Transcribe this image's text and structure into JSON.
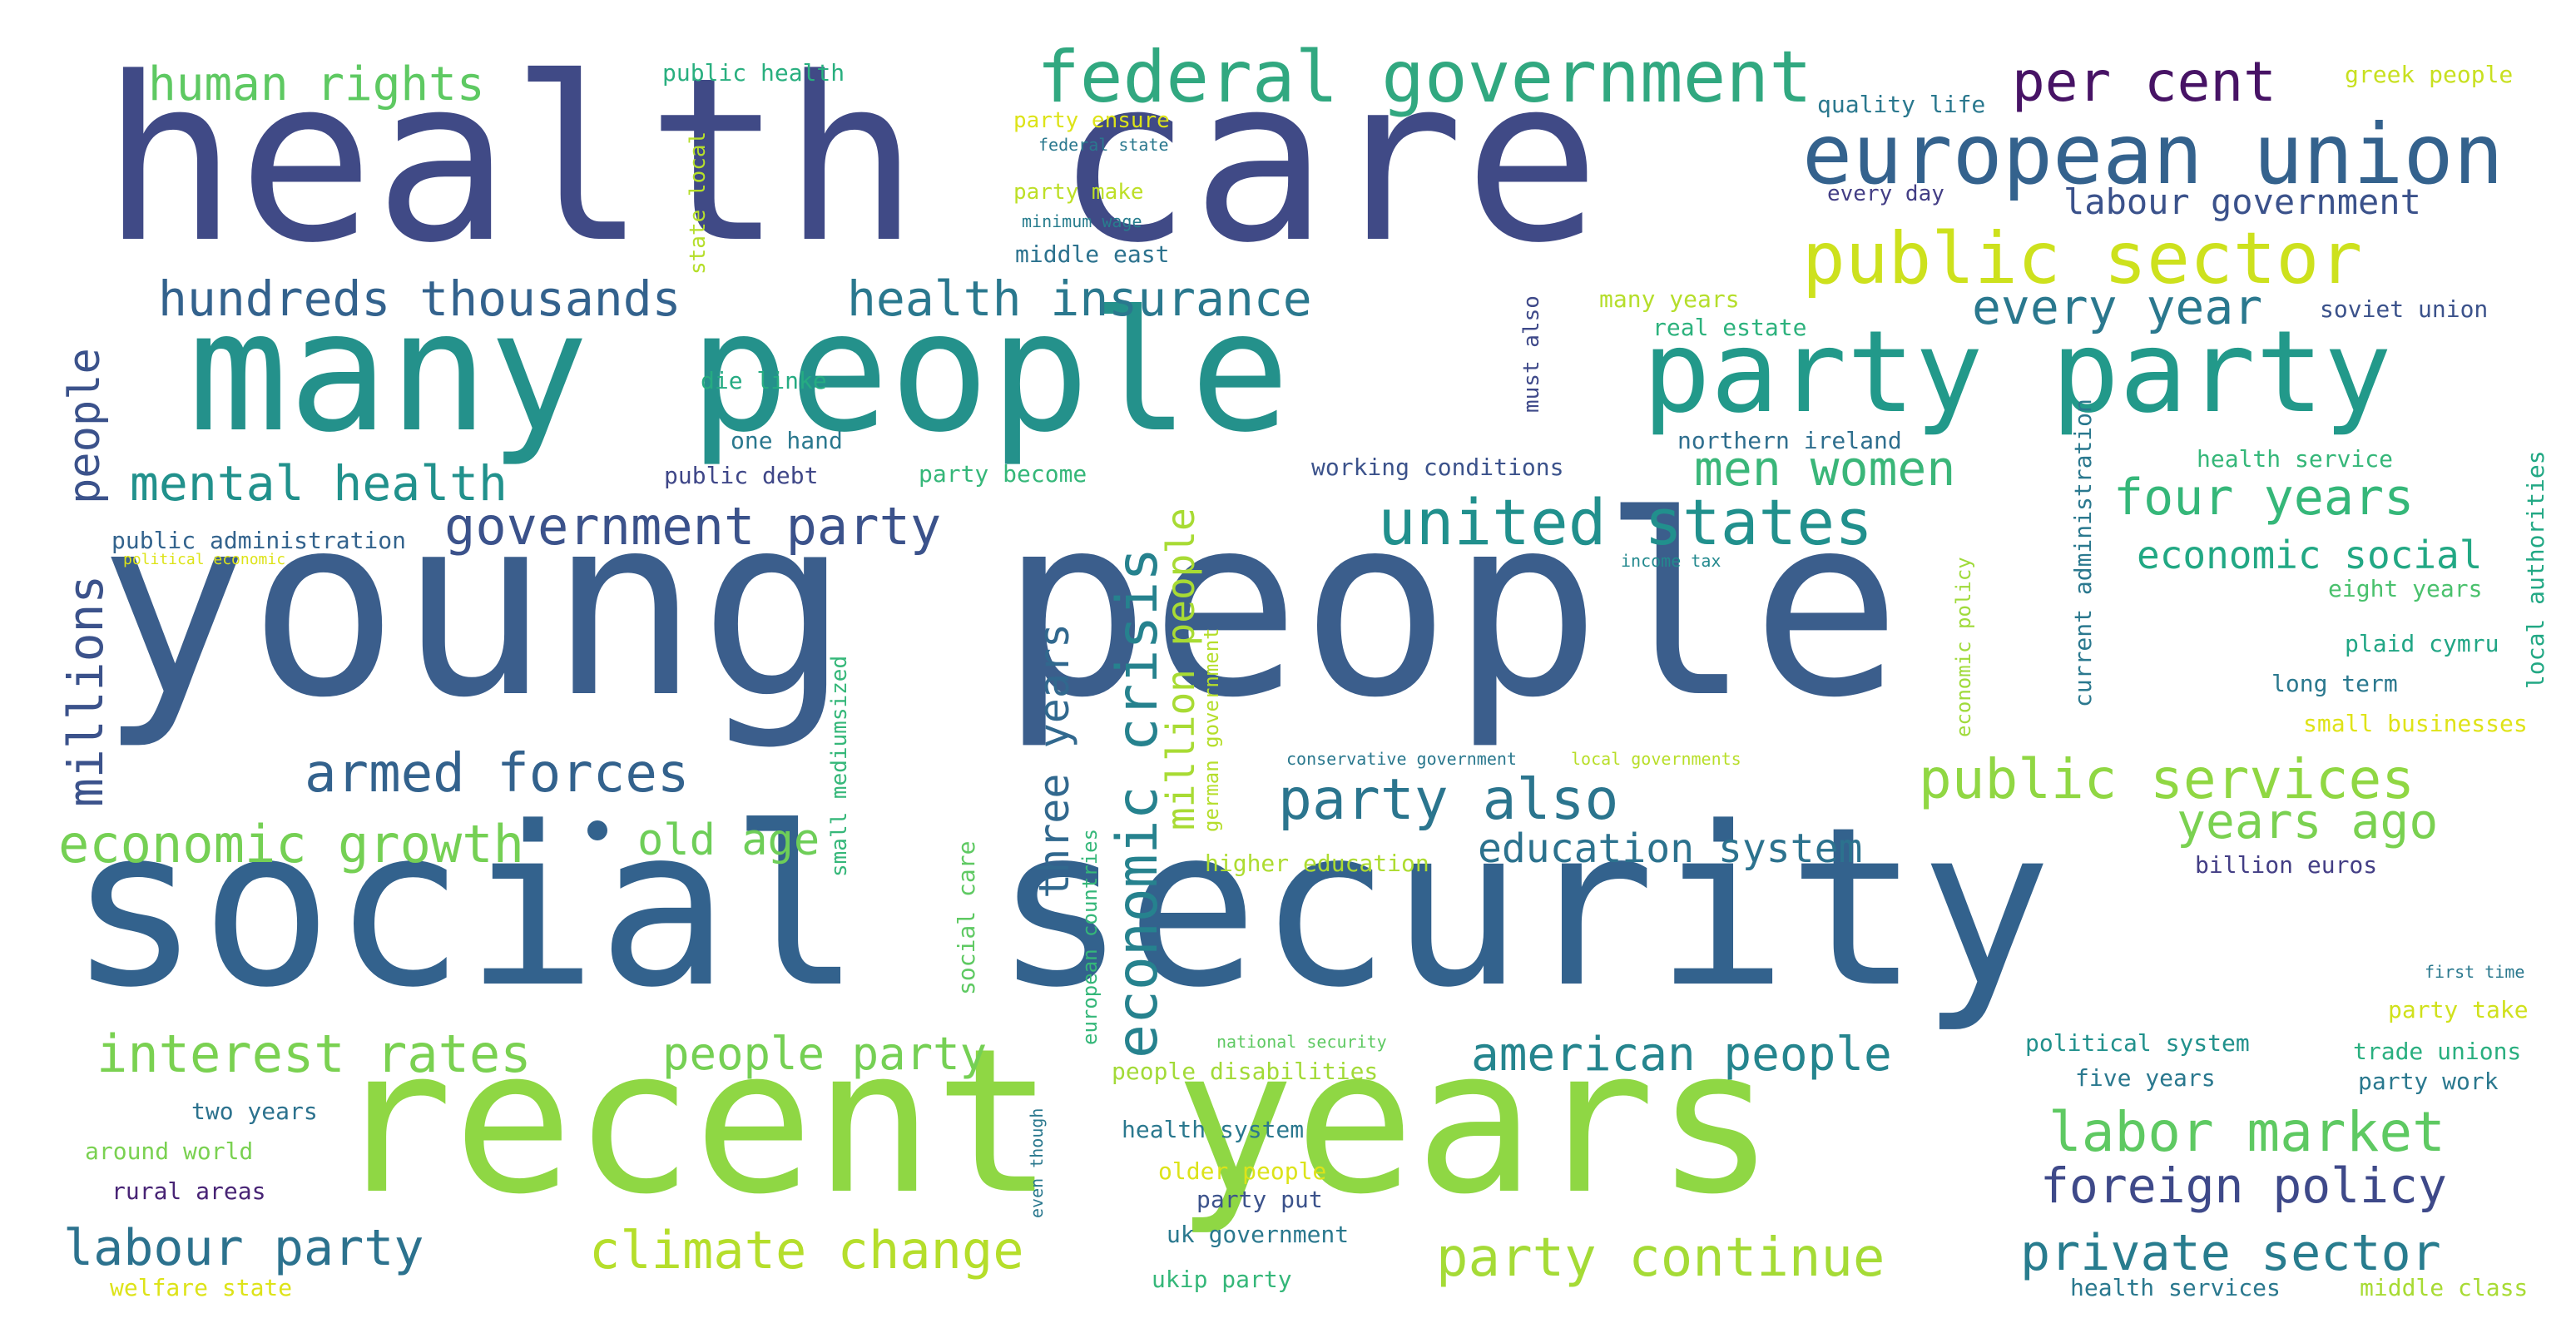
{
  "words": [
    {
      "text": "young people",
      "color": "#3b5e8c"
    },
    {
      "text": "health care",
      "color": "#404a86"
    },
    {
      "text": "social security",
      "color": "#33628d"
    },
    {
      "text": "many people",
      "color": "#24918b"
    },
    {
      "text": "recent years",
      "color": "#8fd744"
    },
    {
      "text": "party party",
      "color": "#22998a"
    },
    {
      "text": "federal government",
      "color": "#31a880"
    },
    {
      "text": "european union",
      "color": "#34628d"
    },
    {
      "text": "public sector",
      "color": "#cde11d"
    },
    {
      "text": "per cent",
      "color": "#471365"
    },
    {
      "text": "human rights",
      "color": "#5ec962"
    },
    {
      "text": "hundreds thousands",
      "color": "#33628d"
    },
    {
      "text": "health insurance",
      "color": "#2a788e"
    },
    {
      "text": "every year",
      "color": "#2a788e"
    },
    {
      "text": "mental health",
      "color": "#21918c"
    },
    {
      "text": "government party",
      "color": "#3b528b"
    },
    {
      "text": "united states",
      "color": "#21908d"
    },
    {
      "text": "men women",
      "color": "#3ab679"
    },
    {
      "text": "four years",
      "color": "#35b779"
    },
    {
      "text": "armed forces",
      "color": "#33628d"
    },
    {
      "text": "party also",
      "color": "#2b758e"
    },
    {
      "text": "public services",
      "color": "#90d743"
    },
    {
      "text": "economic growth",
      "color": "#75d054"
    },
    {
      "text": "old age",
      "color": "#6ece58"
    },
    {
      "text": "education system",
      "color": "#2c728e"
    },
    {
      "text": "years ago",
      "color": "#7ad151"
    },
    {
      "text": "economic social",
      "color": "#22a884"
    },
    {
      "text": "interest rates",
      "color": "#7ad151"
    },
    {
      "text": "people party",
      "color": "#75d054"
    },
    {
      "text": "american people",
      "color": "#25858e"
    },
    {
      "text": "labor market",
      "color": "#5ec962"
    },
    {
      "text": "foreign policy",
      "color": "#3e4989"
    },
    {
      "text": "labour party",
      "color": "#2c728e"
    },
    {
      "text": "climate change",
      "color": "#b5de2b"
    },
    {
      "text": "party continue",
      "color": "#a5db36"
    },
    {
      "text": "private sector",
      "color": "#287c8e"
    },
    {
      "text": "public health",
      "color": "#29af7f"
    },
    {
      "text": "quality life",
      "color": "#2a788e"
    },
    {
      "text": "greek people",
      "color": "#c8e020"
    },
    {
      "text": "party ensure",
      "color": "#dde318"
    },
    {
      "text": "federal state",
      "color": "#2a788e"
    },
    {
      "text": "party make",
      "color": "#bddf26"
    },
    {
      "text": "minimum wage",
      "color": "#287d8e"
    },
    {
      "text": "middle east",
      "color": "#2c728e"
    },
    {
      "text": "every day",
      "color": "#433e85"
    },
    {
      "text": "labour government",
      "color": "#3b528b"
    },
    {
      "text": "many years",
      "color": "#b5de2b"
    },
    {
      "text": "real estate",
      "color": "#2db27d"
    },
    {
      "text": "soviet union",
      "color": "#3b528b"
    },
    {
      "text": "die linke",
      "color": "#25ab82"
    },
    {
      "text": "one hand",
      "color": "#2a788e"
    },
    {
      "text": "public debt",
      "color": "#3f4788"
    },
    {
      "text": "party become",
      "color": "#35b779"
    },
    {
      "text": "working conditions",
      "color": "#3b528b"
    },
    {
      "text": "northern ireland",
      "color": "#2e6e8e"
    },
    {
      "text": "health service",
      "color": "#35b779"
    },
    {
      "text": "public administration",
      "color": "#33638d"
    },
    {
      "text": "political economic",
      "color": "#dde318"
    },
    {
      "text": "income tax",
      "color": "#23898e"
    },
    {
      "text": "eight years",
      "color": "#4ac16d"
    },
    {
      "text": "plaid cymru",
      "color": "#21a685"
    },
    {
      "text": "long term",
      "color": "#2a788e"
    },
    {
      "text": "small businesses",
      "color": "#dfe318"
    },
    {
      "text": "conservative government",
      "color": "#2a788e"
    },
    {
      "text": "local governments",
      "color": "#b8de29"
    },
    {
      "text": "higher education",
      "color": "#addc30"
    },
    {
      "text": "billion euros",
      "color": "#433e85"
    },
    {
      "text": "first time",
      "color": "#2a788e"
    },
    {
      "text": "party take",
      "color": "#d0e11c"
    },
    {
      "text": "national security",
      "color": "#5ec962"
    },
    {
      "text": "political system",
      "color": "#21918c"
    },
    {
      "text": "trade unions",
      "color": "#29af7f"
    },
    {
      "text": "five years",
      "color": "#2a788e"
    },
    {
      "text": "party work",
      "color": "#2a788e"
    },
    {
      "text": "people disabilities",
      "color": "#a2da37"
    },
    {
      "text": "two years",
      "color": "#2c728e"
    },
    {
      "text": "around world",
      "color": "#7ad151"
    },
    {
      "text": "health system",
      "color": "#2a788e"
    },
    {
      "text": "older people",
      "color": "#dce319"
    },
    {
      "text": "rural areas",
      "color": "#482475"
    },
    {
      "text": "party put",
      "color": "#3b528b"
    },
    {
      "text": "uk government",
      "color": "#2a788e"
    },
    {
      "text": "welfare state",
      "color": "#dde318"
    },
    {
      "text": "ukip party",
      "color": "#35b779"
    },
    {
      "text": "health services",
      "color": "#2a788e"
    },
    {
      "text": "middle class",
      "color": "#a8db34"
    },
    {
      "text": "people",
      "color": "#3b528b"
    },
    {
      "text": "millions",
      "color": "#3b528b"
    },
    {
      "text": "state local",
      "color": "#b5de2b"
    },
    {
      "text": "three years",
      "color": "#31688e"
    },
    {
      "text": "economic crisis",
      "color": "#26828e"
    },
    {
      "text": "million people",
      "color": "#a8db34"
    },
    {
      "text": "german government",
      "color": "#b5de2b"
    },
    {
      "text": "small mediumsized",
      "color": "#35b779"
    },
    {
      "text": "social care",
      "color": "#5ec962"
    },
    {
      "text": "european countries",
      "color": "#35b779"
    },
    {
      "text": "must also",
      "color": "#3e4989"
    },
    {
      "text": "economic policy",
      "color": "#9fda3a"
    },
    {
      "text": "current administration",
      "color": "#2a788e"
    },
    {
      "text": "local authorities",
      "color": "#22a884"
    },
    {
      "text": "even though",
      "color": "#2a788e"
    }
  ]
}
